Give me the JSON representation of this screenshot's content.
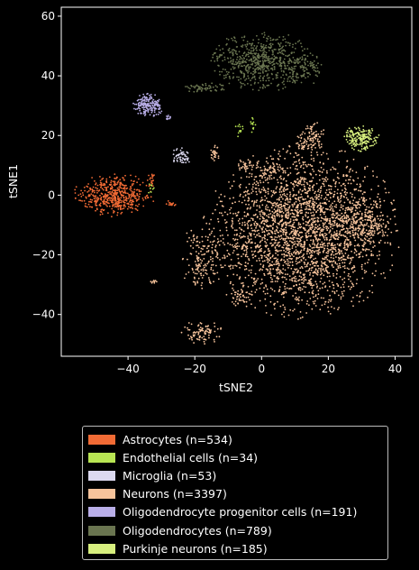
{
  "chart_data": {
    "type": "scatter",
    "title": "",
    "xlabel": "tSNE2",
    "ylabel": "tSNE1",
    "xlim": [
      -60,
      45
    ],
    "ylim": [
      -54,
      63
    ],
    "xticks": [
      -40,
      -20,
      0,
      20,
      40
    ],
    "yticks": [
      -40,
      -20,
      0,
      20,
      40,
      60
    ],
    "xtick_labels": [
      "−40",
      "−20",
      "0",
      "20",
      "40"
    ],
    "ytick_labels": [
      "−40",
      "−20",
      "0",
      "20",
      "40",
      "60"
    ],
    "grid": false,
    "legend_position": "below",
    "series": [
      {
        "name": "Astrocytes (n=534)",
        "color": "#f26b35",
        "count": 534,
        "clusters": [
          {
            "cx": -44,
            "cy": 0,
            "sx": 5.5,
            "sy": 3.2,
            "n": 500
          },
          {
            "cx": -27,
            "cy": -3,
            "sx": 1,
            "sy": 0.6,
            "n": 14
          },
          {
            "cx": -33,
            "cy": 5,
            "sx": 0.5,
            "sy": 1.5,
            "n": 20
          }
        ]
      },
      {
        "name": "Endothelial cells (n=34)",
        "color": "#b8e553",
        "count": 34,
        "clusters": [
          {
            "cx": -6.5,
            "cy": 22,
            "sx": 0.6,
            "sy": 1.5,
            "n": 12
          },
          {
            "cx": -2.5,
            "cy": 24,
            "sx": 0.4,
            "sy": 1.5,
            "n": 12
          },
          {
            "cx": -33,
            "cy": 2,
            "sx": 0.5,
            "sy": 1,
            "n": 10
          }
        ]
      },
      {
        "name": "Microglia (n=53)",
        "color": "#dcd9f0",
        "count": 53,
        "clusters": [
          {
            "cx": -24,
            "cy": 13,
            "sx": 1.2,
            "sy": 1.6,
            "n": 53
          }
        ]
      },
      {
        "name": "Neurons (n=3397)",
        "color": "#f6c39b",
        "count": 3397,
        "clusters": [
          {
            "cx": 12,
            "cy": -12,
            "sx": 13,
            "sy": 13,
            "n": 2700
          },
          {
            "cx": 30,
            "cy": -10,
            "sx": 4,
            "sy": 4,
            "n": 200
          },
          {
            "cx": 15,
            "cy": 19,
            "sx": 2.2,
            "sy": 2.5,
            "n": 100
          },
          {
            "cx": -18,
            "cy": -21,
            "sx": 3,
            "sy": 5,
            "n": 150
          },
          {
            "cx": -18,
            "cy": -46,
            "sx": 2.8,
            "sy": 1.8,
            "n": 90
          },
          {
            "cx": -6,
            "cy": -34,
            "sx": 2,
            "sy": 2,
            "n": 50
          },
          {
            "cx": -14,
            "cy": 14,
            "sx": 0.8,
            "sy": 1.2,
            "n": 27
          },
          {
            "cx": -32,
            "cy": -29,
            "sx": 0.6,
            "sy": 0.3,
            "n": 10
          },
          {
            "cx": -5,
            "cy": 10,
            "sx": 1.2,
            "sy": 1,
            "n": 30
          },
          {
            "cx": 3,
            "cy": 8,
            "sx": 2,
            "sy": 2,
            "n": 40
          }
        ]
      },
      {
        "name": "Oligodendrocyte progenitor cells (n=191)",
        "color": "#b9aee8",
        "count": 191,
        "clusters": [
          {
            "cx": -34,
            "cy": 30,
            "sx": 2,
            "sy": 1.8,
            "n": 180
          },
          {
            "cx": -28,
            "cy": 26,
            "sx": 0.5,
            "sy": 0.5,
            "n": 11
          }
        ]
      },
      {
        "name": "Oligodendrocytes (n=789)",
        "color": "#6a7550",
        "count": 789,
        "clusters": [
          {
            "cx": 0,
            "cy": 45,
            "sx": 7,
            "sy": 4.5,
            "n": 650
          },
          {
            "cx": -17,
            "cy": 36,
            "sx": 3.5,
            "sy": 0.7,
            "n": 60
          },
          {
            "cx": 13,
            "cy": 42,
            "sx": 2.5,
            "sy": 2.5,
            "n": 79
          }
        ]
      },
      {
        "name": "Purkinje neurons (n=185)",
        "color": "#d7ef7e",
        "count": 185,
        "clusters": [
          {
            "cx": 30,
            "cy": 19,
            "sx": 2.5,
            "sy": 2,
            "n": 185
          }
        ]
      }
    ]
  }
}
